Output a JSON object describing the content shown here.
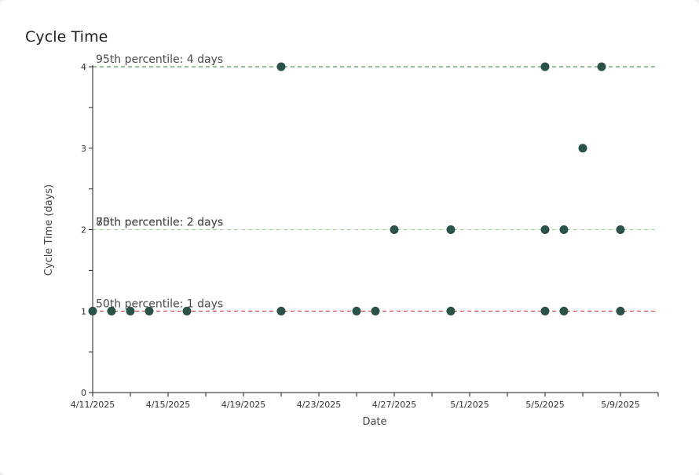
{
  "chart_data": {
    "type": "scatter",
    "title": "Cycle Time",
    "xlabel": "Date",
    "ylabel": "Cycle Time (days)",
    "xlim": [
      "2025-04-11",
      "2025-05-11"
    ],
    "ylim": [
      0,
      4
    ],
    "x_ticks": [
      "4/11/2025",
      "4/15/2025",
      "4/19/2025",
      "4/23/2025",
      "4/27/2025",
      "5/1/2025",
      "5/5/2025",
      "5/9/2025"
    ],
    "y_ticks": [
      "0",
      "1",
      "2",
      "3",
      "4"
    ],
    "points": [
      {
        "date": "2025-04-11",
        "days": 1
      },
      {
        "date": "2025-04-12",
        "days": 1
      },
      {
        "date": "2025-04-13",
        "days": 1
      },
      {
        "date": "2025-04-14",
        "days": 1
      },
      {
        "date": "2025-04-16",
        "days": 1
      },
      {
        "date": "2025-04-21",
        "days": 1
      },
      {
        "date": "2025-04-21",
        "days": 4
      },
      {
        "date": "2025-04-25",
        "days": 1
      },
      {
        "date": "2025-04-26",
        "days": 1
      },
      {
        "date": "2025-04-27",
        "days": 2
      },
      {
        "date": "2025-04-30",
        "days": 1
      },
      {
        "date": "2025-04-30",
        "days": 2
      },
      {
        "date": "2025-05-05",
        "days": 1
      },
      {
        "date": "2025-05-05",
        "days": 2
      },
      {
        "date": "2025-05-05",
        "days": 4
      },
      {
        "date": "2025-05-06",
        "days": 1
      },
      {
        "date": "2025-05-06",
        "days": 2
      },
      {
        "date": "2025-05-07",
        "days": 3
      },
      {
        "date": "2025-05-08",
        "days": 4
      },
      {
        "date": "2025-05-09",
        "days": 1
      },
      {
        "date": "2025-05-09",
        "days": 2
      }
    ],
    "percentiles": [
      {
        "label": "50th percentile: 1 days",
        "value": 1,
        "color": "#d43b3b"
      },
      {
        "label": "70th percentile: 2 days",
        "value": 2,
        "color": "#9ad79a"
      },
      {
        "label": "85th percentile: 2 days",
        "value": 2,
        "color": "#9ad79a"
      },
      {
        "label": "95th percentile: 4 days",
        "value": 4,
        "color": "#3b7a3b"
      }
    ],
    "point_color": "#2a5248",
    "grid": false
  }
}
